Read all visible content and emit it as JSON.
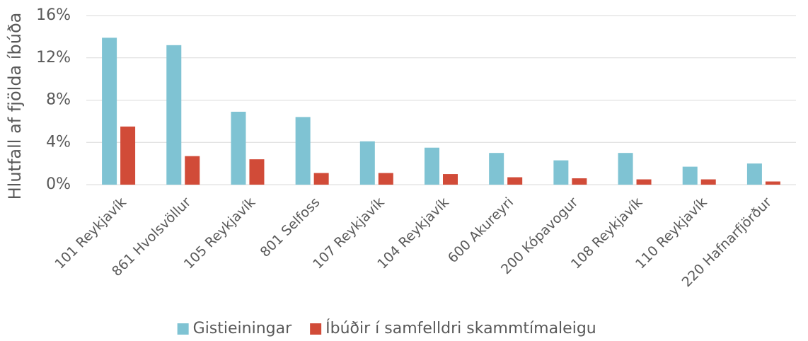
{
  "chart_data": {
    "type": "bar",
    "y_label": "Hlutfall af fjölda íbúða",
    "categories": [
      "101 Reykjavík",
      "861 Hvolsvöllur",
      "105 Reykjavík",
      "801 Selfoss",
      "107 Reykjavík",
      "104 Reykjavík",
      "600 Akureyri",
      "200 Kópavogur",
      "108 Reykjavík",
      "110 Reykjavík",
      "220 Hafnarfjörður"
    ],
    "series": [
      {
        "name": "Gistieiningar",
        "color": "#7fc3d3",
        "values": [
          13.9,
          13.2,
          6.9,
          6.4,
          4.1,
          3.5,
          3.0,
          2.3,
          3.0,
          1.7,
          2.0
        ]
      },
      {
        "name": "Íbúðir í samfelldri skammtímaleigu",
        "color": "#d14b38",
        "values": [
          5.5,
          2.7,
          2.4,
          1.1,
          1.1,
          1.0,
          0.7,
          0.6,
          0.5,
          0.5,
          0.3
        ]
      }
    ],
    "ylim": [
      0,
      16
    ],
    "yticks": [
      {
        "value": 0,
        "label": "0%"
      },
      {
        "value": 4,
        "label": "4%"
      },
      {
        "value": 8,
        "label": "8%"
      },
      {
        "value": 12,
        "label": "12%"
      },
      {
        "value": 16,
        "label": "16%"
      }
    ],
    "grid": true,
    "legend": "bottom"
  }
}
